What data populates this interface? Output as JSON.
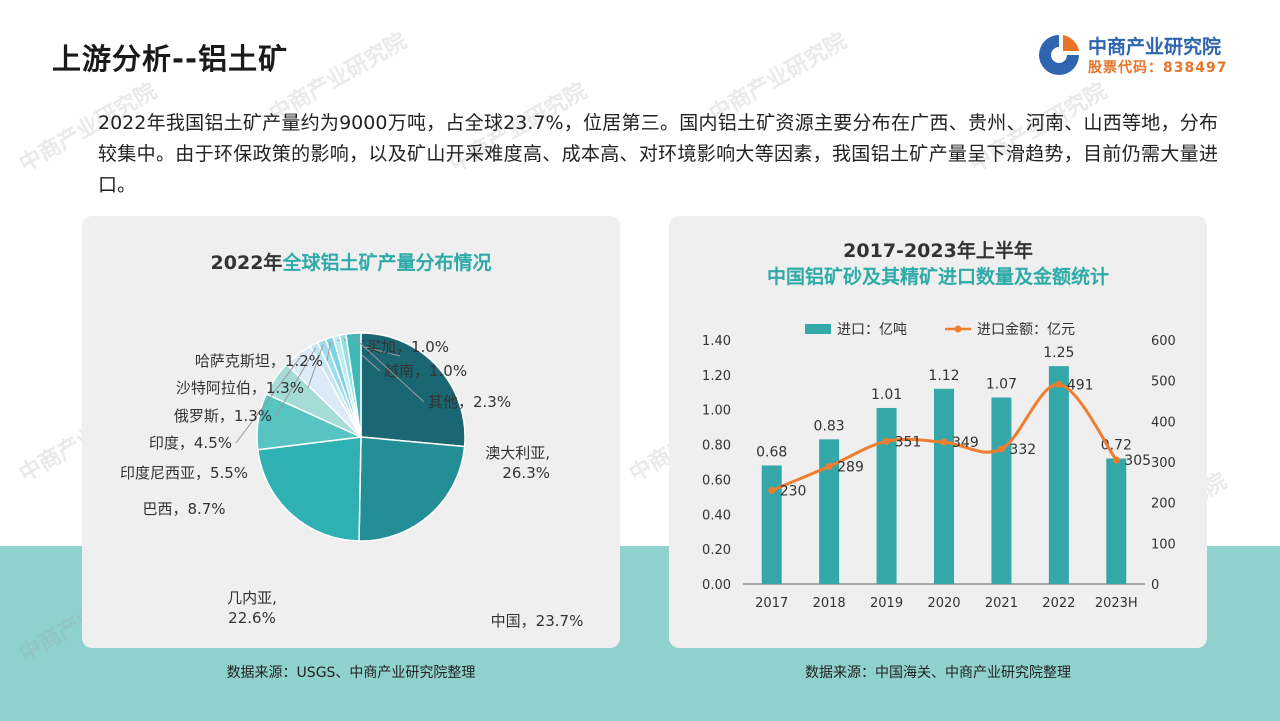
{
  "page": {
    "title_prefix": "上游分析--",
    "title_highlight": "铝土矿",
    "intro": "2022年我国铝土矿产量约为9000万吨，占全球23.7%，位居第三。国内铝土矿资源主要分布在广西、贵州、河南、山西等地，分布较集中。由于环保政策的影响，以及矿山开采难度高、成本高、对环境影响大等因素，我国铝土矿产量呈下滑趋势，目前仍需大量进口。",
    "logo_name": "中商产业研究院",
    "logo_stock": "股票代码：838497",
    "watermark": "中商产业研究院"
  },
  "left_panel": {
    "title_year": "2022年",
    "title_main": "全球铝土矿产量分布情况",
    "source": "数据来源：USGS、中商产业研究院整理"
  },
  "right_panel": {
    "title_line1": "2017-2023年上半年",
    "title_line2": "中国铝矿砂及其精矿进口数量及金额统计",
    "legend_bar": "进口：亿吨",
    "legend_line": "进口金额：亿元",
    "source": "数据来源：中国海关、中商产业研究院整理"
  },
  "chart_data": [
    {
      "type": "pie",
      "title": "2022年全球铝土矿产量分布情况",
      "slices": [
        {
          "label": "澳大利亚",
          "value": 26.3,
          "display": "澳大利亚,\n26.3%",
          "color": "#1a6672"
        },
        {
          "label": "中国",
          "value": 23.7,
          "display": "中国，23.7%",
          "color": "#238e96"
        },
        {
          "label": "几内亚",
          "value": 22.6,
          "display": "几内亚,\n22.6%",
          "color": "#2fb1b3"
        },
        {
          "label": "巴西",
          "value": 8.7,
          "display": "巴西，8.7%",
          "color": "#57c4c1"
        },
        {
          "label": "印度尼西亚",
          "value": 5.5,
          "display": "印度尼西亚，5.5%",
          "color": "#a6dcd8"
        },
        {
          "label": "印度",
          "value": 4.5,
          "display": "印度，4.5%",
          "color": "#dcebf7"
        },
        {
          "label": "俄罗斯",
          "value": 1.3,
          "display": "俄罗斯，1.3%",
          "color": "#c4e6f3"
        },
        {
          "label": "沙特阿拉伯",
          "value": 1.3,
          "display": "沙特阿拉伯，1.3%",
          "color": "#9fdcec"
        },
        {
          "label": "哈萨克斯坦",
          "value": 1.2,
          "display": "哈萨克斯坦，1.2%",
          "color": "#7fd2e6"
        },
        {
          "label": "牙买加",
          "value": 1.0,
          "display": "牙买加，1.0%",
          "color": "#b9ecee"
        },
        {
          "label": "越南",
          "value": 1.0,
          "display": "越南，1.0%",
          "color": "#8fe2e4"
        },
        {
          "label": "其他",
          "value": 2.3,
          "display": "其他，2.3%",
          "color": "#3fb8b6"
        }
      ]
    },
    {
      "type": "bar",
      "title": "2017-2023年上半年 中国铝矿砂及其精矿进口数量及金额统计",
      "categories": [
        "2017",
        "2018",
        "2019",
        "2020",
        "2021",
        "2022",
        "2023H"
      ],
      "series": [
        {
          "name": "进口：亿吨",
          "type": "bar",
          "axis": "left",
          "color": "#34a8a9",
          "values": [
            0.68,
            0.83,
            1.01,
            1.12,
            1.07,
            1.25,
            0.72
          ],
          "labels": [
            "0.68",
            "0.83",
            "1.01",
            "1.12",
            "1.07",
            "1.25",
            "0.72"
          ]
        },
        {
          "name": "进口金额：亿元",
          "type": "line",
          "axis": "right",
          "color": "#ef7d2f",
          "values": [
            230,
            289,
            351,
            349,
            332,
            491,
            305
          ],
          "labels": [
            "230",
            "289",
            "351",
            "349",
            "332",
            "491",
            "305"
          ]
        }
      ],
      "y_left": {
        "min": 0,
        "max": 1.4,
        "ticks": [
          "0.00",
          "0.20",
          "0.40",
          "0.60",
          "0.80",
          "1.00",
          "1.20",
          "1.40"
        ]
      },
      "y_right": {
        "min": 0,
        "max": 600,
        "ticks": [
          "0",
          "100",
          "200",
          "300",
          "400",
          "500",
          "600"
        ]
      },
      "legend_position": "top",
      "grid": false
    }
  ]
}
